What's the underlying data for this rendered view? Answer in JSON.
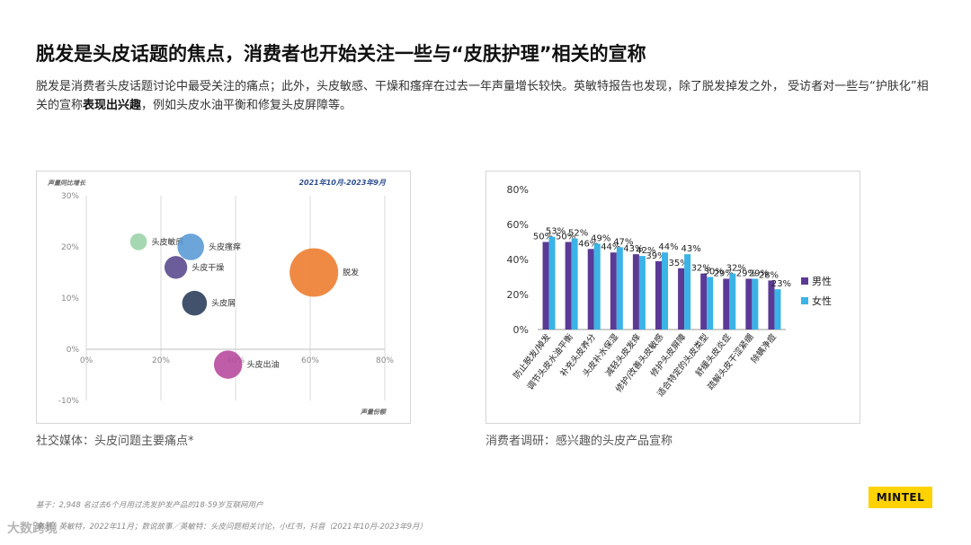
{
  "slide": {
    "title": "脱发是头皮话题的焦点，消费者也开始关注一些与“皮肤护理”相关的宣称",
    "body_part1": "脱发是消费者头皮话题讨论中最受关注的痛点；此外，头皮敏感、干燥和瘙痒在过去一年声量增长较快。英敏特报告也发现，除了脱发掉发之外， 受访者对一些与“护肤化”相关的宣称",
    "body_bold": "表现出兴趣",
    "body_part2": "，例如头皮水油平衡和修复头皮屏障等。",
    "caption_left": "社交媒体：头皮问题主要痛点*",
    "caption_right": "消费者调研：感兴趣的头皮产品宣称",
    "footer_base": "基于：2,948 名过去6个月用过洗发护发产品的18-59岁互联网用户",
    "footer_source": "来源：英敏特，2022年11月；数说故事／英敏特：头皮问题相关讨论，小红书，抖音（2021年10月-2023年9月）",
    "logo": "MINTEL",
    "watermark": "大数跨境"
  },
  "chart_data": [
    {
      "type": "bubble",
      "title": "2021年10月-2023年9月",
      "xlabel": "声量份额",
      "ylabel": "声量同比增长",
      "xlim": [
        0,
        80
      ],
      "ylim": [
        -10,
        30
      ],
      "x_ticks": [
        "0%",
        "20%",
        "40%",
        "60%",
        "80%"
      ],
      "y_ticks": [
        "-10%",
        "0%",
        "10%",
        "20%",
        "30%"
      ],
      "grid": "vertical",
      "points": [
        {
          "label": "头皮敏感",
          "x": 14,
          "y": 21,
          "size": 1.2,
          "color": "#9bd3a9"
        },
        {
          "label": "头皮瘙痒",
          "x": 28,
          "y": 20,
          "size": 3.0,
          "color": "#5b9bd5"
        },
        {
          "label": "头皮干燥",
          "x": 24,
          "y": 16,
          "size": 2.2,
          "color": "#5b4a8f"
        },
        {
          "label": "脱发",
          "x": 61,
          "y": 15,
          "size": 10.0,
          "color": "#ed7d31"
        },
        {
          "label": "头皮屑",
          "x": 29,
          "y": 9,
          "size": 2.6,
          "color": "#2e3e5c"
        },
        {
          "label": "头皮出油",
          "x": 38,
          "y": -3,
          "size": 3.4,
          "color": "#b84ba0"
        }
      ]
    },
    {
      "type": "bar",
      "categories": [
        "防止脱发/掉发",
        "调节头皮水油平衡",
        "补充头皮养分",
        "头皮补水保湿",
        "减轻头皮发痒",
        "修护/改善头皮敏感",
        "修护头皮屏障",
        "适合特定的头皮类型",
        "舒缓头皮炎症",
        "疏解头皮干涩紧绷",
        "除螨净痘"
      ],
      "series": [
        {
          "name": "男性",
          "values": [
            50,
            50,
            46,
            44,
            43,
            39,
            35,
            32,
            29,
            29,
            28
          ],
          "color": "#5b3a96"
        },
        {
          "name": "女性",
          "values": [
            53,
            52,
            49,
            47,
            42,
            44,
            43,
            30,
            32,
            29,
            23
          ],
          "color": "#3bb3e6"
        }
      ],
      "ylim": [
        0,
        80
      ],
      "y_ticks": [
        "0%",
        "20%",
        "40%",
        "60%",
        "80%"
      ],
      "legend": "right"
    }
  ]
}
